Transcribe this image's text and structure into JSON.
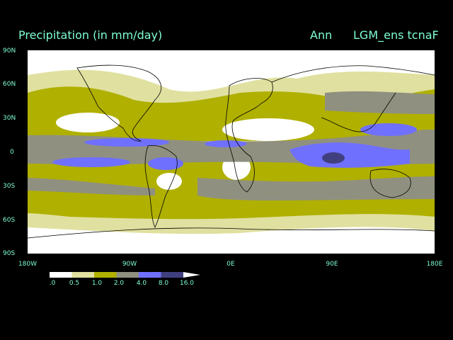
{
  "header": {
    "title": "Precipitation (in mm/day)",
    "season": "Ann",
    "run": "LGM_ens tcnaF"
  },
  "axes": {
    "y_ticks": [
      "90N",
      "60N",
      "30N",
      "0",
      "30S",
      "60S",
      "90S"
    ],
    "x_ticks": [
      "180W",
      "90W",
      "0E",
      "90E",
      "180E"
    ]
  },
  "colorbar": {
    "labels": [
      ".0",
      "0.5",
      "1.0",
      "2.0",
      "4.0",
      "8.0",
      "16.0"
    ],
    "levels": [
      0,
      0.5,
      1.0,
      2.0,
      4.0,
      8.0,
      16.0
    ],
    "colors": [
      "#ffffff",
      "#e0e0a0",
      "#b0b000",
      "#909080",
      "#7070ff",
      "#404080"
    ]
  }
}
